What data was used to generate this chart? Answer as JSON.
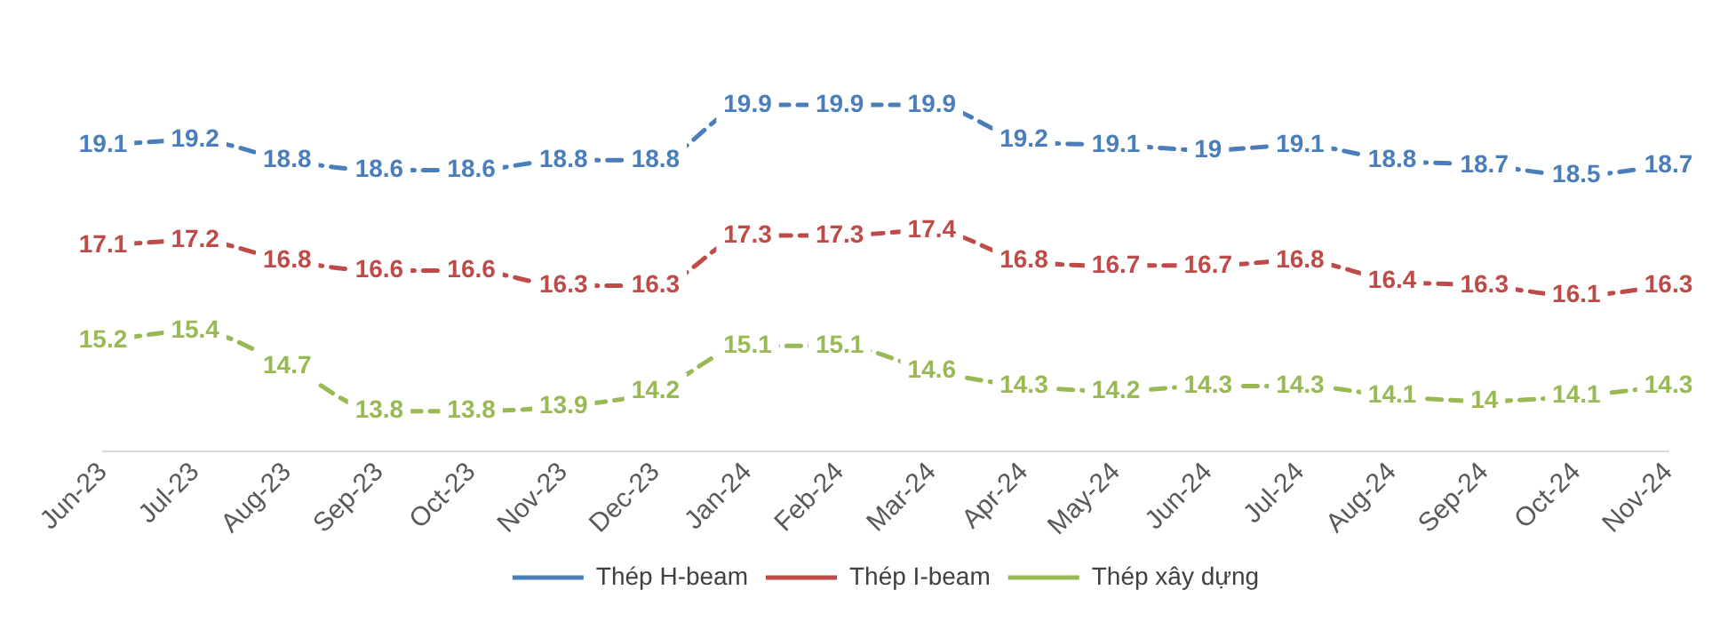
{
  "chart_data": {
    "type": "line",
    "categories": [
      "Jun-23",
      "Jul-23",
      "Aug-23",
      "Sep-23",
      "Oct-23",
      "Nov-23",
      "Dec-23",
      "Jan-24",
      "Feb-24",
      "Mar-24",
      "Apr-24",
      "May-24",
      "Jun-24",
      "Jul-24",
      "Aug-24",
      "Sep-24",
      "Oct-24",
      "Nov-24"
    ],
    "series": [
      {
        "name": "Thép H-beam",
        "color": "#4a7ebb",
        "values": [
          19.1,
          19.2,
          18.8,
          18.6,
          18.6,
          18.8,
          18.8,
          19.9,
          19.9,
          19.9,
          19.2,
          19.1,
          19,
          19.1,
          18.8,
          18.7,
          18.5,
          18.7
        ]
      },
      {
        "name": "Thép I-beam",
        "color": "#be4b48",
        "values": [
          17.1,
          17.2,
          16.8,
          16.6,
          16.6,
          16.3,
          16.3,
          17.3,
          17.3,
          17.4,
          16.8,
          16.7,
          16.7,
          16.8,
          16.4,
          16.3,
          16.1,
          16.3
        ]
      },
      {
        "name": "Thép xây dựng",
        "color": "#98b954",
        "values": [
          15.2,
          15.4,
          14.7,
          13.8,
          13.8,
          13.9,
          14.2,
          15.1,
          15.1,
          14.6,
          14.3,
          14.2,
          14.3,
          14.3,
          14.1,
          14,
          14.1,
          14.3
        ]
      }
    ],
    "tick_labels": "x",
    "grid": false,
    "legend": "bottom",
    "line_style": "dashed",
    "data_labels": true
  }
}
